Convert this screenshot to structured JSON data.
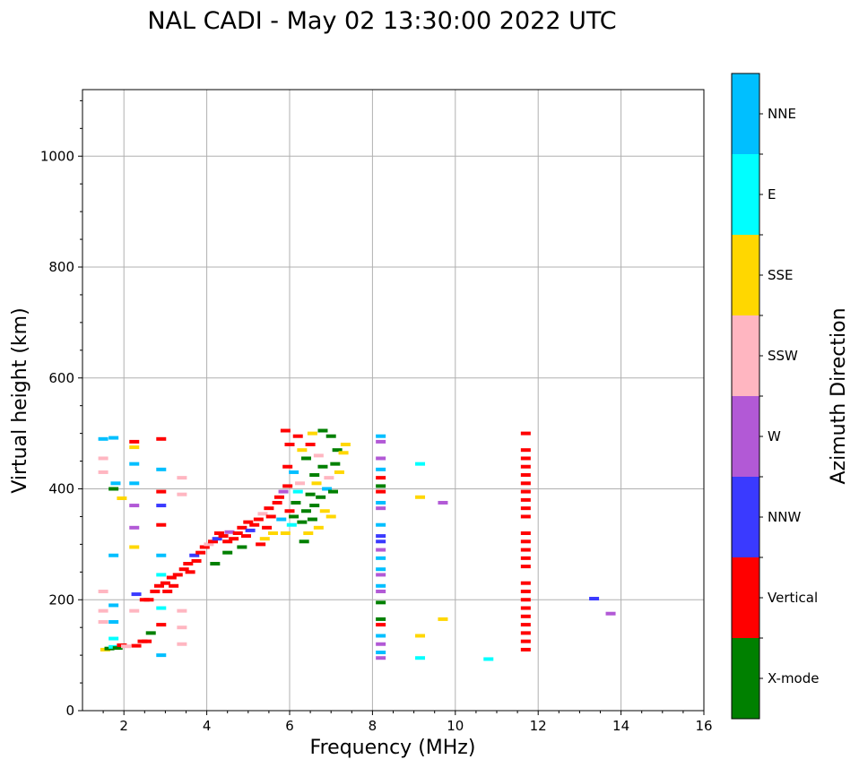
{
  "chart_data": {
    "type": "scatter",
    "title": "NAL CADI - May 02 13:30:00 2022 UTC",
    "xlabel": "Frequency (MHz)",
    "ylabel": "Virtual height (km)",
    "xlim": [
      1,
      16
    ],
    "ylim": [
      0,
      1120
    ],
    "grid": true,
    "xticks": [
      2,
      4,
      6,
      8,
      10,
      12,
      14,
      16
    ],
    "xtick_labels": [
      "2",
      "4",
      "6",
      "8",
      "10",
      "12",
      "14",
      "16"
    ],
    "yticks": [
      0,
      200,
      400,
      600,
      800,
      1000
    ],
    "ytick_labels": [
      "0",
      "200",
      "400",
      "600",
      "800",
      "1000"
    ],
    "colorbar": {
      "label": "Azimuth Direction",
      "categories": [
        "X-mode",
        "Vertical",
        "NNW",
        "W",
        "SSW",
        "SSE",
        "E",
        "NNE"
      ],
      "colors": [
        "#008000",
        "#ff0000",
        "#3a3aff",
        "#b259d6",
        "#ffb6c1",
        "#ffd700",
        "#00ffff",
        "#00bfff"
      ]
    },
    "points": [
      {
        "f": 1.55,
        "h": 110,
        "c": "SSE"
      },
      {
        "f": 1.65,
        "h": 112,
        "c": "X-mode"
      },
      {
        "f": 1.75,
        "h": 115,
        "c": "E"
      },
      {
        "f": 1.85,
        "h": 113,
        "c": "X-mode"
      },
      {
        "f": 1.95,
        "h": 118,
        "c": "Vertical"
      },
      {
        "f": 2.05,
        "h": 116,
        "c": "SSW"
      },
      {
        "f": 1.5,
        "h": 490,
        "c": "NNE"
      },
      {
        "f": 1.75,
        "h": 492,
        "c": "NNE"
      },
      {
        "f": 1.5,
        "h": 455,
        "c": "SSW"
      },
      {
        "f": 1.5,
        "h": 430,
        "c": "SSW"
      },
      {
        "f": 1.8,
        "h": 410,
        "c": "NNE"
      },
      {
        "f": 1.75,
        "h": 400,
        "c": "X-mode"
      },
      {
        "f": 1.95,
        "h": 383,
        "c": "SSE"
      },
      {
        "f": 1.75,
        "h": 280,
        "c": "NNE"
      },
      {
        "f": 1.5,
        "h": 215,
        "c": "SSW"
      },
      {
        "f": 1.75,
        "h": 190,
        "c": "NNE"
      },
      {
        "f": 1.5,
        "h": 180,
        "c": "SSW"
      },
      {
        "f": 1.75,
        "h": 160,
        "c": "NNE"
      },
      {
        "f": 1.5,
        "h": 160,
        "c": "SSW"
      },
      {
        "f": 1.75,
        "h": 130,
        "c": "E"
      },
      {
        "f": 2.25,
        "h": 485,
        "c": "Vertical"
      },
      {
        "f": 2.25,
        "h": 475,
        "c": "SSE"
      },
      {
        "f": 2.25,
        "h": 445,
        "c": "NNE"
      },
      {
        "f": 2.25,
        "h": 410,
        "c": "NNE"
      },
      {
        "f": 2.25,
        "h": 370,
        "c": "W"
      },
      {
        "f": 2.25,
        "h": 330,
        "c": "W"
      },
      {
        "f": 2.25,
        "h": 295,
        "c": "SSE"
      },
      {
        "f": 2.25,
        "h": 180,
        "c": "SSW"
      },
      {
        "f": 2.9,
        "h": 490,
        "c": "Vertical"
      },
      {
        "f": 2.9,
        "h": 435,
        "c": "NNE"
      },
      {
        "f": 2.9,
        "h": 395,
        "c": "Vertical"
      },
      {
        "f": 2.9,
        "h": 370,
        "c": "NNW"
      },
      {
        "f": 2.9,
        "h": 335,
        "c": "Vertical"
      },
      {
        "f": 2.9,
        "h": 280,
        "c": "NNE"
      },
      {
        "f": 2.9,
        "h": 245,
        "c": "E"
      },
      {
        "f": 2.9,
        "h": 185,
        "c": "E"
      },
      {
        "f": 2.9,
        "h": 155,
        "c": "Vertical"
      },
      {
        "f": 2.9,
        "h": 100,
        "c": "NNE"
      },
      {
        "f": 3.4,
        "h": 420,
        "c": "SSW"
      },
      {
        "f": 3.4,
        "h": 390,
        "c": "SSW"
      },
      {
        "f": 3.4,
        "h": 180,
        "c": "SSW"
      },
      {
        "f": 3.4,
        "h": 150,
        "c": "SSW"
      },
      {
        "f": 3.4,
        "h": 120,
        "c": "SSW"
      },
      {
        "f": 2.3,
        "h": 117,
        "c": "Vertical"
      },
      {
        "f": 2.45,
        "h": 125,
        "c": "Vertical"
      },
      {
        "f": 2.55,
        "h": 125,
        "c": "Vertical"
      },
      {
        "f": 2.65,
        "h": 140,
        "c": "X-mode"
      },
      {
        "f": 2.3,
        "h": 210,
        "c": "NNW"
      },
      {
        "f": 2.5,
        "h": 200,
        "c": "Vertical"
      },
      {
        "f": 2.6,
        "h": 200,
        "c": "Vertical"
      },
      {
        "f": 2.75,
        "h": 215,
        "c": "Vertical"
      },
      {
        "f": 2.85,
        "h": 225,
        "c": "Vertical"
      },
      {
        "f": 3.0,
        "h": 230,
        "c": "Vertical"
      },
      {
        "f": 3.05,
        "h": 215,
        "c": "Vertical"
      },
      {
        "f": 3.15,
        "h": 240,
        "c": "Vertical"
      },
      {
        "f": 3.2,
        "h": 225,
        "c": "Vertical"
      },
      {
        "f": 3.3,
        "h": 245,
        "c": "Vertical"
      },
      {
        "f": 3.45,
        "h": 255,
        "c": "Vertical"
      },
      {
        "f": 3.55,
        "h": 265,
        "c": "Vertical"
      },
      {
        "f": 3.6,
        "h": 250,
        "c": "Vertical"
      },
      {
        "f": 3.7,
        "h": 280,
        "c": "NNW"
      },
      {
        "f": 3.75,
        "h": 270,
        "c": "Vertical"
      },
      {
        "f": 3.85,
        "h": 285,
        "c": "Vertical"
      },
      {
        "f": 3.95,
        "h": 295,
        "c": "Vertical"
      },
      {
        "f": 4.05,
        "h": 300,
        "c": "SSW"
      },
      {
        "f": 4.15,
        "h": 305,
        "c": "Vertical"
      },
      {
        "f": 4.25,
        "h": 310,
        "c": "NNW"
      },
      {
        "f": 4.3,
        "h": 320,
        "c": "Vertical"
      },
      {
        "f": 4.4,
        "h": 315,
        "c": "Vertical"
      },
      {
        "f": 4.5,
        "h": 305,
        "c": "Vertical"
      },
      {
        "f": 4.55,
        "h": 322,
        "c": "W"
      },
      {
        "f": 4.65,
        "h": 310,
        "c": "Vertical"
      },
      {
        "f": 4.75,
        "h": 320,
        "c": "Vertical"
      },
      {
        "f": 4.85,
        "h": 330,
        "c": "Vertical"
      },
      {
        "f": 4.95,
        "h": 315,
        "c": "Vertical"
      },
      {
        "f": 5.0,
        "h": 340,
        "c": "Vertical"
      },
      {
        "f": 5.05,
        "h": 325,
        "c": "NNW"
      },
      {
        "f": 5.15,
        "h": 335,
        "c": "Vertical"
      },
      {
        "f": 5.25,
        "h": 345,
        "c": "Vertical"
      },
      {
        "f": 5.3,
        "h": 300,
        "c": "Vertical"
      },
      {
        "f": 5.35,
        "h": 355,
        "c": "SSW"
      },
      {
        "f": 5.45,
        "h": 330,
        "c": "Vertical"
      },
      {
        "f": 5.5,
        "h": 365,
        "c": "Vertical"
      },
      {
        "f": 5.55,
        "h": 350,
        "c": "Vertical"
      },
      {
        "f": 5.6,
        "h": 320,
        "c": "SSE"
      },
      {
        "f": 5.7,
        "h": 375,
        "c": "Vertical"
      },
      {
        "f": 5.75,
        "h": 385,
        "c": "Vertical"
      },
      {
        "f": 5.8,
        "h": 345,
        "c": "NNE"
      },
      {
        "f": 5.85,
        "h": 395,
        "c": "W"
      },
      {
        "f": 5.95,
        "h": 405,
        "c": "Vertical"
      },
      {
        "f": 6.0,
        "h": 360,
        "c": "Vertical"
      },
      {
        "f": 4.2,
        "h": 265,
        "c": "X-mode"
      },
      {
        "f": 4.5,
        "h": 285,
        "c": "X-mode"
      },
      {
        "f": 4.85,
        "h": 295,
        "c": "X-mode"
      },
      {
        "f": 5.4,
        "h": 310,
        "c": "SSE"
      },
      {
        "f": 5.9,
        "h": 320,
        "c": "SSE"
      },
      {
        "f": 6.05,
        "h": 335,
        "c": "E"
      },
      {
        "f": 6.1,
        "h": 350,
        "c": "X-mode"
      },
      {
        "f": 6.15,
        "h": 375,
        "c": "X-mode"
      },
      {
        "f": 6.2,
        "h": 395,
        "c": "E"
      },
      {
        "f": 6.25,
        "h": 410,
        "c": "SSW"
      },
      {
        "f": 6.3,
        "h": 340,
        "c": "X-mode"
      },
      {
        "f": 6.35,
        "h": 305,
        "c": "X-mode"
      },
      {
        "f": 6.4,
        "h": 360,
        "c": "X-mode"
      },
      {
        "f": 6.45,
        "h": 320,
        "c": "SSE"
      },
      {
        "f": 6.5,
        "h": 390,
        "c": "X-mode"
      },
      {
        "f": 6.55,
        "h": 345,
        "c": "X-mode"
      },
      {
        "f": 6.6,
        "h": 370,
        "c": "X-mode"
      },
      {
        "f": 6.65,
        "h": 410,
        "c": "SSE"
      },
      {
        "f": 6.7,
        "h": 330,
        "c": "SSE"
      },
      {
        "f": 6.75,
        "h": 385,
        "c": "X-mode"
      },
      {
        "f": 6.8,
        "h": 440,
        "c": "X-mode"
      },
      {
        "f": 6.85,
        "h": 360,
        "c": "SSE"
      },
      {
        "f": 6.9,
        "h": 400,
        "c": "NNE"
      },
      {
        "f": 6.95,
        "h": 420,
        "c": "SSW"
      },
      {
        "f": 7.0,
        "h": 350,
        "c": "SSE"
      },
      {
        "f": 7.05,
        "h": 395,
        "c": "X-mode"
      },
      {
        "f": 7.1,
        "h": 445,
        "c": "X-mode"
      },
      {
        "f": 7.15,
        "h": 470,
        "c": "X-mode"
      },
      {
        "f": 7.2,
        "h": 430,
        "c": "SSE"
      },
      {
        "f": 7.3,
        "h": 465,
        "c": "SSE"
      },
      {
        "f": 7.35,
        "h": 480,
        "c": "SSE"
      },
      {
        "f": 7.0,
        "h": 495,
        "c": "X-mode"
      },
      {
        "f": 6.8,
        "h": 505,
        "c": "X-mode"
      },
      {
        "f": 6.5,
        "h": 480,
        "c": "Vertical"
      },
      {
        "f": 6.3,
        "h": 470,
        "c": "SSE"
      },
      {
        "f": 6.2,
        "h": 495,
        "c": "Vertical"
      },
      {
        "f": 6.0,
        "h": 480,
        "c": "Vertical"
      },
      {
        "f": 5.9,
        "h": 505,
        "c": "Vertical"
      },
      {
        "f": 5.95,
        "h": 440,
        "c": "Vertical"
      },
      {
        "f": 6.1,
        "h": 430,
        "c": "NNE"
      },
      {
        "f": 6.4,
        "h": 455,
        "c": "X-mode"
      },
      {
        "f": 6.6,
        "h": 425,
        "c": "X-mode"
      },
      {
        "f": 6.7,
        "h": 460,
        "c": "SSW"
      },
      {
        "f": 6.55,
        "h": 500,
        "c": "SSE"
      },
      {
        "f": 8.2,
        "h": 495,
        "c": "NNE"
      },
      {
        "f": 8.2,
        "h": 485,
        "c": "W"
      },
      {
        "f": 8.2,
        "h": 455,
        "c": "W"
      },
      {
        "f": 8.2,
        "h": 435,
        "c": "NNE"
      },
      {
        "f": 8.2,
        "h": 420,
        "c": "Vertical"
      },
      {
        "f": 8.2,
        "h": 405,
        "c": "X-mode"
      },
      {
        "f": 8.2,
        "h": 395,
        "c": "Vertical"
      },
      {
        "f": 8.2,
        "h": 375,
        "c": "NNE"
      },
      {
        "f": 8.2,
        "h": 365,
        "c": "W"
      },
      {
        "f": 8.2,
        "h": 335,
        "c": "NNE"
      },
      {
        "f": 8.2,
        "h": 315,
        "c": "NNW"
      },
      {
        "f": 8.2,
        "h": 305,
        "c": "NNW"
      },
      {
        "f": 8.2,
        "h": 290,
        "c": "W"
      },
      {
        "f": 8.2,
        "h": 275,
        "c": "NNE"
      },
      {
        "f": 8.2,
        "h": 255,
        "c": "NNE"
      },
      {
        "f": 8.2,
        "h": 245,
        "c": "W"
      },
      {
        "f": 8.2,
        "h": 225,
        "c": "NNE"
      },
      {
        "f": 8.2,
        "h": 215,
        "c": "W"
      },
      {
        "f": 8.2,
        "h": 195,
        "c": "X-mode"
      },
      {
        "f": 8.2,
        "h": 165,
        "c": "X-mode"
      },
      {
        "f": 8.2,
        "h": 155,
        "c": "Vertical"
      },
      {
        "f": 8.2,
        "h": 135,
        "c": "NNE"
      },
      {
        "f": 8.2,
        "h": 120,
        "c": "W"
      },
      {
        "f": 8.2,
        "h": 105,
        "c": "NNE"
      },
      {
        "f": 8.2,
        "h": 95,
        "c": "W"
      },
      {
        "f": 9.15,
        "h": 445,
        "c": "E"
      },
      {
        "f": 9.15,
        "h": 385,
        "c": "SSE"
      },
      {
        "f": 9.15,
        "h": 135,
        "c": "SSE"
      },
      {
        "f": 9.15,
        "h": 95,
        "c": "E"
      },
      {
        "f": 9.7,
        "h": 375,
        "c": "W"
      },
      {
        "f": 9.7,
        "h": 165,
        "c": "SSE"
      },
      {
        "f": 10.8,
        "h": 93,
        "c": "E"
      },
      {
        "f": 11.7,
        "h": 500,
        "c": "Vertical"
      },
      {
        "f": 11.7,
        "h": 470,
        "c": "Vertical"
      },
      {
        "f": 11.7,
        "h": 455,
        "c": "Vertical"
      },
      {
        "f": 11.7,
        "h": 440,
        "c": "Vertical"
      },
      {
        "f": 11.7,
        "h": 425,
        "c": "Vertical"
      },
      {
        "f": 11.7,
        "h": 410,
        "c": "Vertical"
      },
      {
        "f": 11.7,
        "h": 395,
        "c": "Vertical"
      },
      {
        "f": 11.7,
        "h": 380,
        "c": "Vertical"
      },
      {
        "f": 11.7,
        "h": 365,
        "c": "Vertical"
      },
      {
        "f": 11.7,
        "h": 350,
        "c": "Vertical"
      },
      {
        "f": 11.7,
        "h": 320,
        "c": "Vertical"
      },
      {
        "f": 11.7,
        "h": 305,
        "c": "Vertical"
      },
      {
        "f": 11.7,
        "h": 290,
        "c": "Vertical"
      },
      {
        "f": 11.7,
        "h": 275,
        "c": "Vertical"
      },
      {
        "f": 11.7,
        "h": 260,
        "c": "Vertical"
      },
      {
        "f": 11.7,
        "h": 230,
        "c": "Vertical"
      },
      {
        "f": 11.7,
        "h": 215,
        "c": "Vertical"
      },
      {
        "f": 11.7,
        "h": 200,
        "c": "Vertical"
      },
      {
        "f": 11.7,
        "h": 185,
        "c": "Vertical"
      },
      {
        "f": 11.7,
        "h": 170,
        "c": "Vertical"
      },
      {
        "f": 11.7,
        "h": 155,
        "c": "Vertical"
      },
      {
        "f": 11.7,
        "h": 140,
        "c": "Vertical"
      },
      {
        "f": 11.7,
        "h": 125,
        "c": "Vertical"
      },
      {
        "f": 11.7,
        "h": 110,
        "c": "Vertical"
      },
      {
        "f": 13.35,
        "h": 202,
        "c": "NNW"
      },
      {
        "f": 13.75,
        "h": 175,
        "c": "W"
      }
    ]
  }
}
